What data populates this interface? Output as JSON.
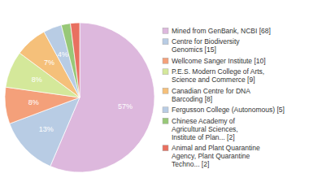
{
  "chart_data": {
    "type": "pie",
    "categories": [
      "Mined from GenBank, NCBI [68]",
      "Centre for Biodiversity\nGenomics [15]",
      "Wellcome Sanger Institute [10]",
      "P.E.S. Modern College of Arts,\nScience and Commerce [9]",
      "Canadian Centre for DNA\nBarcoding [8]",
      "Fergusson College (Autonomous) [5]",
      "Chinese Academy of\nAgricultural Sciences,\nInstitute of Plan... [2]",
      "Animal and Plant Quarantine\nAgency, Plant Quarantine\nTechno... [2]"
    ],
    "values": [
      57,
      13,
      8,
      8,
      7,
      4,
      2,
      2
    ],
    "value_labels": [
      "57%",
      "13%",
      "8%",
      "8%",
      "7%",
      "4%",
      null,
      null
    ],
    "colors": [
      "#ddb8dd",
      "#b8cce4",
      "#f4a07a",
      "#d4e89a",
      "#f5c07a",
      "#b8cce4",
      "#98c878",
      "#e87060"
    ],
    "data_labels": true,
    "legend": "right"
  }
}
